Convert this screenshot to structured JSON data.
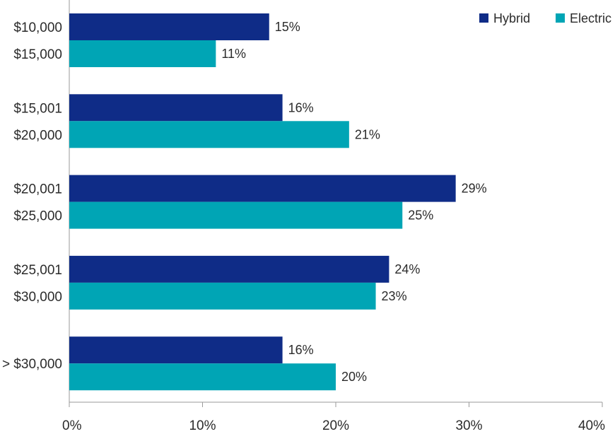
{
  "chart_data": {
    "type": "bar",
    "orientation": "horizontal",
    "categories": [
      [
        "$10,000",
        "$15,000"
      ],
      [
        "$15,001",
        "$20,000"
      ],
      [
        "$20,001",
        "$25,000"
      ],
      [
        "$25,001",
        "$30,000"
      ],
      [
        "> $30,000"
      ]
    ],
    "series": [
      {
        "name": "Hybrid",
        "color": "#0f2c87",
        "values": [
          15,
          16,
          29,
          24,
          16
        ],
        "labels": [
          "15%",
          "16%",
          "29%",
          "24%",
          "16%"
        ]
      },
      {
        "name": "Electric",
        "color": "#00a5b5",
        "values": [
          11,
          21,
          25,
          23,
          20
        ],
        "labels": [
          "11%",
          "21%",
          "25%",
          "23%",
          "20%"
        ]
      }
    ],
    "xlim": [
      0,
      40
    ],
    "xticks": [
      "0%",
      "10%",
      "20%",
      "30%",
      "40%"
    ],
    "title": "",
    "xlabel": "",
    "ylabel": "",
    "legend": "top-right",
    "grid": false
  }
}
